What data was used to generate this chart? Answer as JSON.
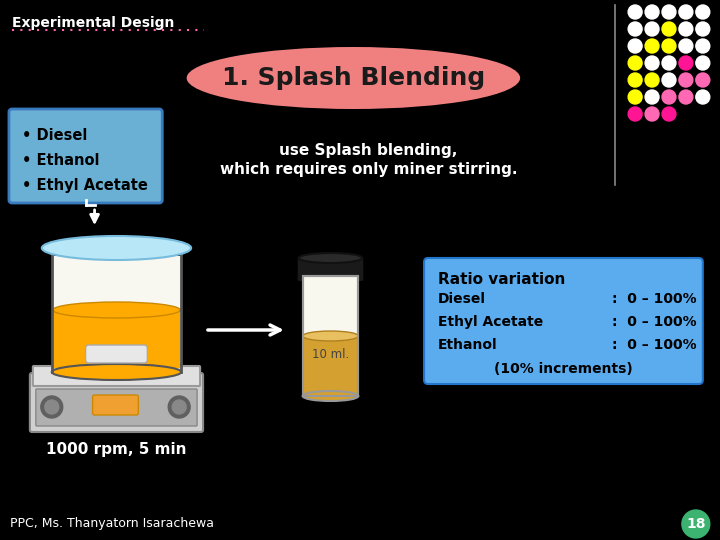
{
  "bg_color": "#000000",
  "title": "1. Splash Blending",
  "title_ellipse_color": "#f08080",
  "title_text_color": "#1a1a1a",
  "header_text": "Experimental Design",
  "header_color": "#ffffff",
  "ingredients": [
    "• Diesel",
    "• Ethanol",
    "• Ethyl Acetate"
  ],
  "splash_text_line1": "use Splash blending,",
  "splash_text_line2": "which requires only miner stirring.",
  "ratio_title": "Ratio variation",
  "ratio_line1": "Diesel",
  "ratio_val1": ":  0 – 100%",
  "ratio_line2": "Ethyl Acetate",
  "ratio_val2": ":  0 – 100%",
  "ratio_line3": "Ethanol",
  "ratio_val3": ":  0 – 100%",
  "ratio_note": "(10% increments)",
  "rpm_text": "1000 rpm, 5 min",
  "footer_text": "PPC, Ms. Thanyatorn Isarachewa",
  "page_number": "18",
  "page_circle_color": "#3cb371",
  "vol_label": "10 ml.",
  "dot_grid": [
    [
      "#ffffff",
      "#ffffff",
      "#ffffff",
      "#ffffff",
      "#ffffff"
    ],
    [
      "#ffffff",
      "#ffffff",
      "#ffffff",
      "#ffff00",
      "#ffffff"
    ],
    [
      "#ffffff",
      "#ffffff",
      "#ffff00",
      "#ffff00",
      "#ffffff"
    ],
    [
      "#ffffff",
      "#ffff00",
      "#ffffff",
      "#ffffff",
      "#ff1493"
    ],
    [
      "#ffff00",
      "#ffffff",
      "#ffffff",
      "#ff69b4",
      "#ff69b4"
    ],
    [
      "#ffff00",
      "#ffffff",
      "#ff69b4",
      "#ff69b4",
      "#ffffff"
    ],
    [
      "#ffff00",
      "#ff69b4",
      "#ff69b4",
      "#ff1493",
      "#ffffff"
    ],
    [
      "#ff1493",
      "#ff69b4",
      "#ff1493",
      "#000000",
      "#000000"
    ]
  ]
}
